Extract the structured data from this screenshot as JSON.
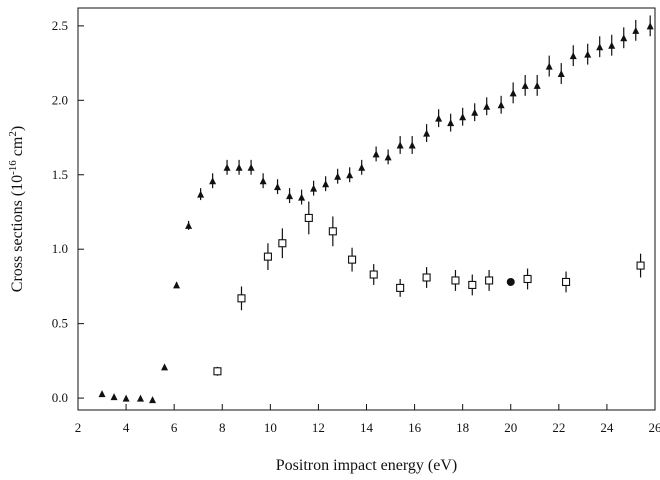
{
  "chart_data": {
    "type": "scatter",
    "xlabel": "Positron impact energy (eV)",
    "ylabel_main": "Cross sections (10",
    "ylabel_exp1": "-16",
    "ylabel_mid": " cm",
    "ylabel_exp2": "2",
    "ylabel_end": ")",
    "xlim": [
      2,
      26
    ],
    "ylim": [
      -0.08,
      2.62
    ],
    "xticks": [
      2,
      4,
      6,
      8,
      10,
      12,
      14,
      16,
      18,
      20,
      22,
      24,
      26
    ],
    "yticks": [
      0.0,
      0.5,
      1.0,
      1.5,
      2.0,
      2.5
    ],
    "ytick_labels": [
      "0.0",
      "0.5",
      "1.0",
      "1.5",
      "2.0",
      "2.5"
    ],
    "grid": false,
    "series": [
      {
        "marker": "filled-triangle",
        "color": "#111111",
        "points": [
          {
            "x": 3.0,
            "y": 0.03,
            "err": 0
          },
          {
            "x": 3.5,
            "y": 0.01,
            "err": 0
          },
          {
            "x": 4.0,
            "y": 0.0,
            "err": 0
          },
          {
            "x": 4.6,
            "y": 0.0,
            "err": 0
          },
          {
            "x": 5.1,
            "y": -0.01,
            "err": 0
          },
          {
            "x": 5.6,
            "y": 0.21,
            "err": 0
          },
          {
            "x": 6.1,
            "y": 0.76,
            "err": 0.02
          },
          {
            "x": 6.6,
            "y": 1.16,
            "err": 0.03
          },
          {
            "x": 7.1,
            "y": 1.37,
            "err": 0.04
          },
          {
            "x": 7.6,
            "y": 1.46,
            "err": 0.05
          },
          {
            "x": 8.2,
            "y": 1.55,
            "err": 0.05
          },
          {
            "x": 8.7,
            "y": 1.55,
            "err": 0.05
          },
          {
            "x": 9.2,
            "y": 1.55,
            "err": 0.05
          },
          {
            "x": 9.7,
            "y": 1.46,
            "err": 0.05
          },
          {
            "x": 10.3,
            "y": 1.42,
            "err": 0.05
          },
          {
            "x": 10.8,
            "y": 1.36,
            "err": 0.05
          },
          {
            "x": 11.3,
            "y": 1.35,
            "err": 0.05
          },
          {
            "x": 11.8,
            "y": 1.41,
            "err": 0.05
          },
          {
            "x": 12.3,
            "y": 1.44,
            "err": 0.05
          },
          {
            "x": 12.8,
            "y": 1.49,
            "err": 0.05
          },
          {
            "x": 13.3,
            "y": 1.5,
            "err": 0.05
          },
          {
            "x": 13.8,
            "y": 1.55,
            "err": 0.05
          },
          {
            "x": 14.4,
            "y": 1.64,
            "err": 0.05
          },
          {
            "x": 14.9,
            "y": 1.62,
            "err": 0.05
          },
          {
            "x": 15.4,
            "y": 1.7,
            "err": 0.06
          },
          {
            "x": 15.9,
            "y": 1.7,
            "err": 0.06
          },
          {
            "x": 16.5,
            "y": 1.78,
            "err": 0.06
          },
          {
            "x": 17.0,
            "y": 1.88,
            "err": 0.06
          },
          {
            "x": 17.5,
            "y": 1.85,
            "err": 0.06
          },
          {
            "x": 18.0,
            "y": 1.89,
            "err": 0.06
          },
          {
            "x": 18.5,
            "y": 1.92,
            "err": 0.06
          },
          {
            "x": 19.0,
            "y": 1.96,
            "err": 0.06
          },
          {
            "x": 19.6,
            "y": 1.97,
            "err": 0.06
          },
          {
            "x": 20.1,
            "y": 2.05,
            "err": 0.07
          },
          {
            "x": 20.6,
            "y": 2.1,
            "err": 0.07
          },
          {
            "x": 21.1,
            "y": 2.1,
            "err": 0.07
          },
          {
            "x": 21.6,
            "y": 2.23,
            "err": 0.07
          },
          {
            "x": 22.1,
            "y": 2.18,
            "err": 0.07
          },
          {
            "x": 22.6,
            "y": 2.3,
            "err": 0.07
          },
          {
            "x": 23.2,
            "y": 2.31,
            "err": 0.07
          },
          {
            "x": 23.7,
            "y": 2.36,
            "err": 0.07
          },
          {
            "x": 24.2,
            "y": 2.37,
            "err": 0.07
          },
          {
            "x": 24.7,
            "y": 2.42,
            "err": 0.07
          },
          {
            "x": 25.2,
            "y": 2.47,
            "err": 0.07
          },
          {
            "x": 25.8,
            "y": 2.5,
            "err": 0.07
          }
        ]
      },
      {
        "marker": "open-square",
        "color": "#111111",
        "points": [
          {
            "x": 7.8,
            "y": 0.18,
            "err": 0.03
          },
          {
            "x": 8.8,
            "y": 0.67,
            "err": 0.08
          },
          {
            "x": 9.9,
            "y": 0.95,
            "err": 0.09
          },
          {
            "x": 10.5,
            "y": 1.04,
            "err": 0.1
          },
          {
            "x": 11.6,
            "y": 1.21,
            "err": 0.11
          },
          {
            "x": 12.6,
            "y": 1.12,
            "err": 0.1
          },
          {
            "x": 13.4,
            "y": 0.93,
            "err": 0.08
          },
          {
            "x": 14.3,
            "y": 0.83,
            "err": 0.07
          },
          {
            "x": 15.4,
            "y": 0.74,
            "err": 0.06
          },
          {
            "x": 16.5,
            "y": 0.81,
            "err": 0.07
          },
          {
            "x": 17.7,
            "y": 0.79,
            "err": 0.07
          },
          {
            "x": 18.4,
            "y": 0.76,
            "err": 0.07
          },
          {
            "x": 19.1,
            "y": 0.79,
            "err": 0.07
          },
          {
            "x": 20.7,
            "y": 0.8,
            "err": 0.07
          },
          {
            "x": 22.3,
            "y": 0.78,
            "err": 0.07
          },
          {
            "x": 25.4,
            "y": 0.89,
            "err": 0.08
          }
        ]
      },
      {
        "marker": "filled-circle",
        "color": "#111111",
        "points": [
          {
            "x": 20.0,
            "y": 0.78,
            "err": 0
          }
        ]
      }
    ]
  }
}
